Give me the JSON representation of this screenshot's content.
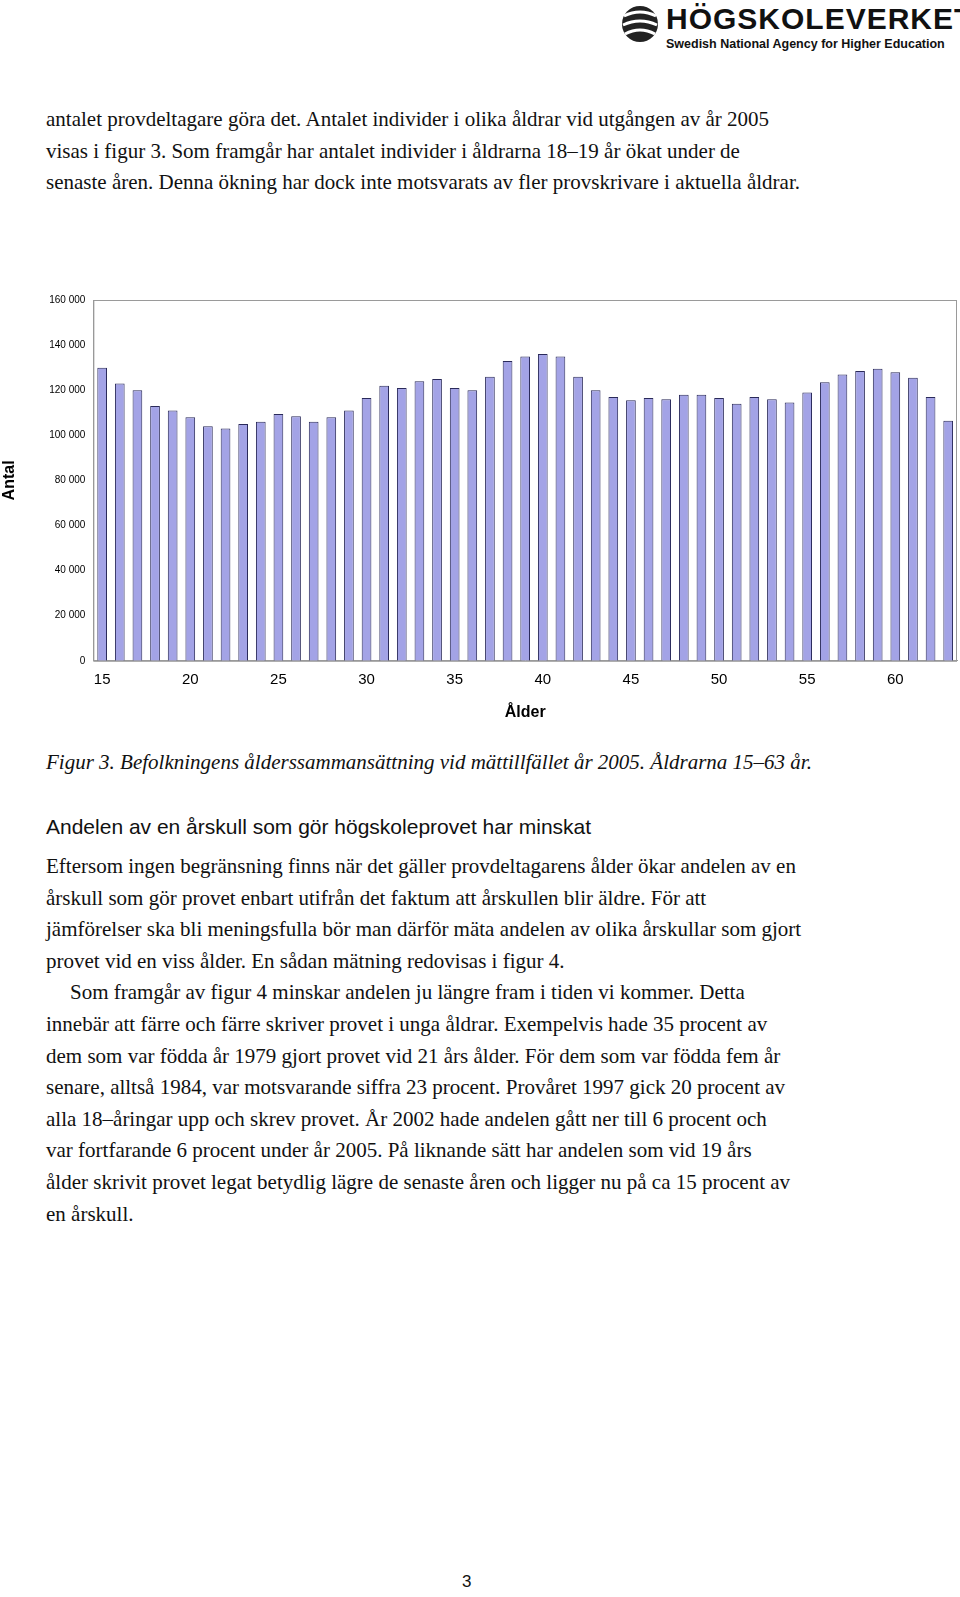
{
  "header": {
    "title": "HÖGSKOLEVERKET",
    "subtitle": "Swedish National Agency for Higher Education"
  },
  "intro": [
    "antalet provdeltagare göra det. Antalet individer i olika åldrar vid utgången av år 2005",
    "visas i figur 3. Som framgår har antalet individer i åldrarna 18–19 år ökat under de",
    "senaste åren. Denna ökning har dock inte motsvarats av fler provskrivare i aktuella åldrar."
  ],
  "chart_data": {
    "type": "bar",
    "x_label": "Ålder",
    "y_label": "Antal",
    "categories": [
      "15",
      null,
      null,
      null,
      null,
      "20",
      null,
      null,
      null,
      null,
      "25",
      null,
      null,
      null,
      null,
      "30",
      null,
      null,
      null,
      null,
      "35",
      null,
      null,
      null,
      null,
      "40",
      null,
      null,
      null,
      null,
      "45",
      null,
      null,
      null,
      null,
      "50",
      null,
      null,
      null,
      null,
      "55",
      null,
      null,
      null,
      null,
      "60",
      null,
      null,
      null
    ],
    "values": [
      130000,
      123000,
      120000,
      113000,
      111000,
      108000,
      104000,
      103000,
      105000,
      106000,
      109500,
      108500,
      106000,
      108000,
      111000,
      116500,
      122000,
      121000,
      124000,
      125000,
      121000,
      120000,
      126000,
      133000,
      135000,
      136000,
      135000,
      126000,
      120000,
      117000,
      115500,
      116500,
      116000,
      118000,
      118000,
      116500,
      114000,
      117000,
      116000,
      114500,
      119000,
      123500,
      127000,
      128500,
      129500,
      128000,
      125500,
      117000,
      106500
    ],
    "color": "#a3a3e6",
    "ylim": [
      0,
      160000
    ],
    "yticks": [
      0,
      {
        "value": 20000,
        "label": "20 000"
      },
      {
        "value": 40000,
        "label": "40 000"
      },
      {
        "value": 60000,
        "label": "60 000"
      },
      {
        "value": 80000,
        "label": "80 000"
      },
      {
        "value": 100000,
        "label": "100 000"
      },
      {
        "value": 120000,
        "label": "120 000"
      },
      {
        "value": 140000,
        "label": "140 000"
      },
      {
        "value": 160000,
        "label": "160 000"
      }
    ],
    "grid": false,
    "legend": false
  },
  "caption": "Figur 3. Befolkningens ålderssammansättning vid mättillfället år 2005. Åldrarna 15–63 år.",
  "section": {
    "heading": "Andelen av en årskull som gör högskoleprovet har minskat",
    "paragraphs": [
      [
        "Eftersom ingen begränsning finns när det gäller provdeltagarens ålder ökar andelen av en",
        "årskull som gör provet enbart utifrån det faktum att årskullen blir äldre. För att",
        "jämförelser ska bli meningsfulla bör man därför mäta andelen av olika årskullar som gjort",
        "provet vid en viss ålder. En sådan mätning redovisas i figur 4."
      ],
      [
        "Som framgår av figur 4 minskar andelen ju längre fram i tiden vi kommer. Detta",
        "innebär att färre och färre skriver provet i unga åldrar. Exempelvis hade 35 procent av",
        "dem som var födda år 1979 gjort provet vid 21 års ålder. För dem som var födda fem år",
        "senare, alltså 1984, var motsvarande siffra 23 procent. Provåret 1997 gick 20 procent av",
        "alla 18–åringar upp och skrev provet. År 2002 hade andelen gått ner till 6 procent och",
        "var fortfarande 6 procent under år 2005. På liknande sätt har andelen som vid 19 års",
        "ålder skrivit provet legat betydlig lägre de senaste åren och ligger nu på ca 15 procent av",
        "en årskull."
      ]
    ]
  },
  "page_number": "3"
}
